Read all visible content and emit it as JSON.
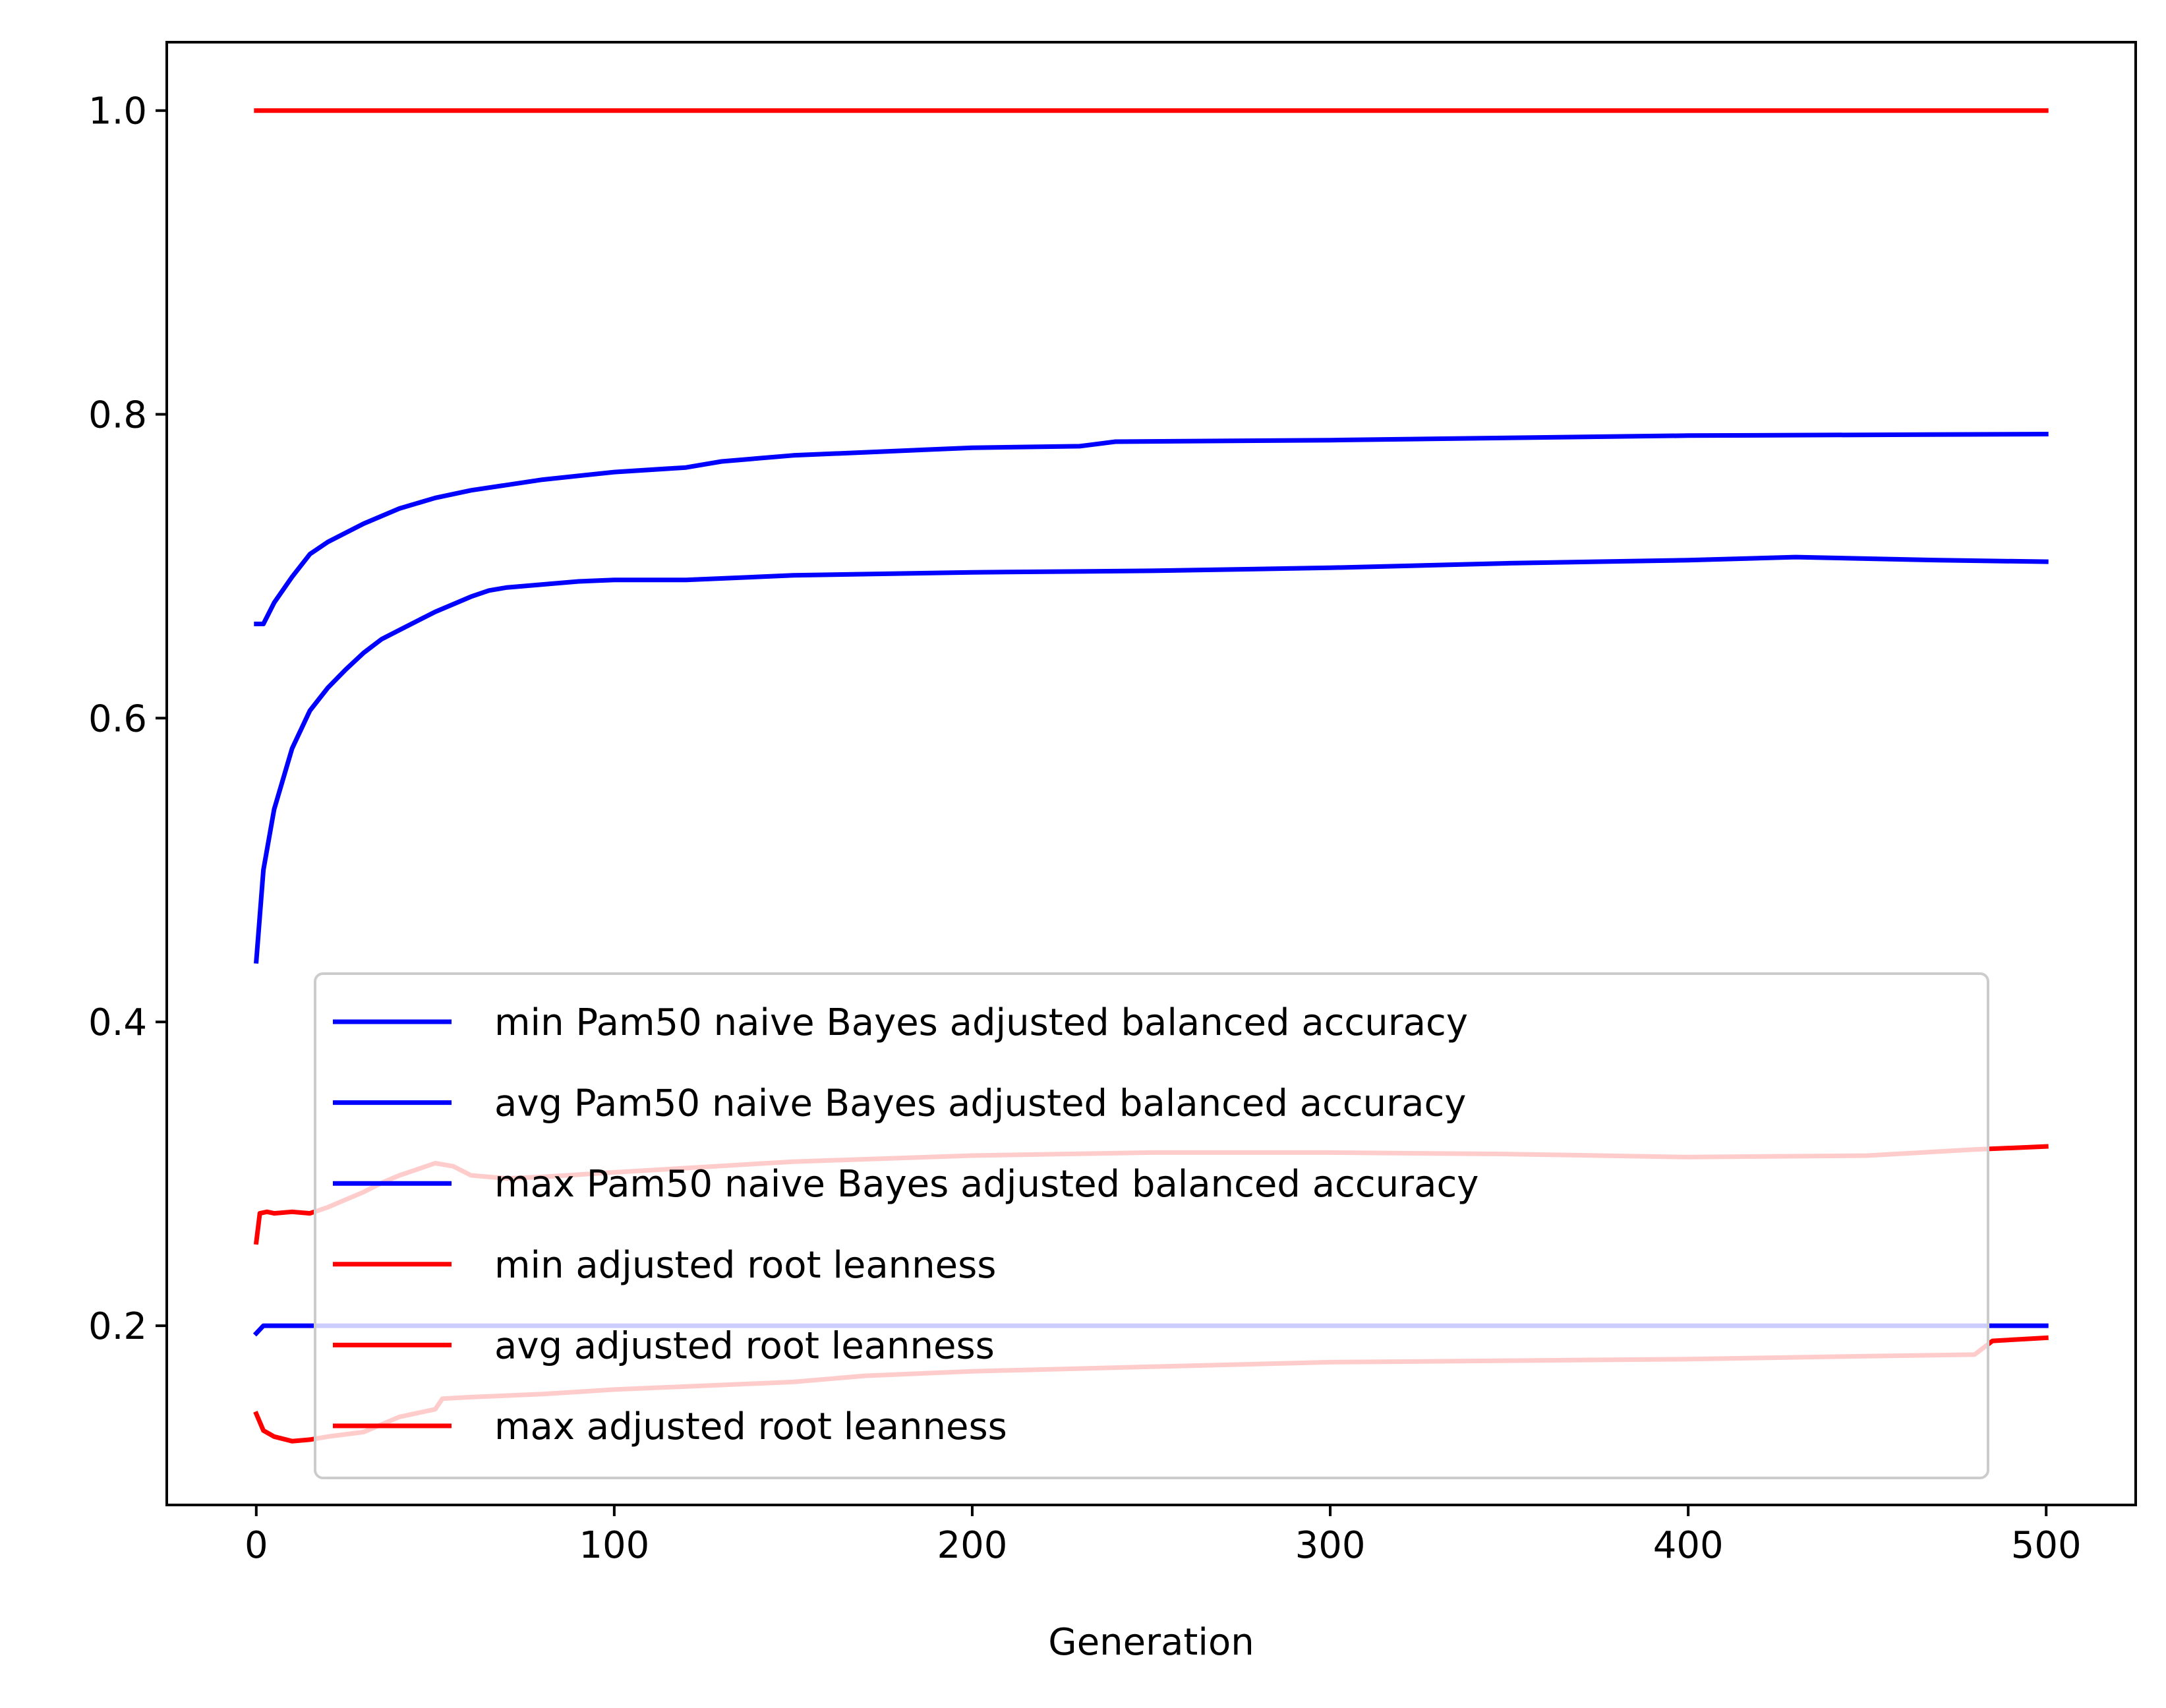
{
  "chart_data": {
    "type": "line",
    "title": "",
    "xlabel": "Generation",
    "ylabel": "",
    "xlim": [
      -25,
      525
    ],
    "ylim": [
      0.082,
      1.045
    ],
    "x_ticks": [
      0,
      100,
      200,
      300,
      400,
      500
    ],
    "x_tick_labels": [
      "0",
      "100",
      "200",
      "300",
      "400",
      "500"
    ],
    "y_ticks": [
      0.2,
      0.4,
      0.6,
      0.8,
      1.0
    ],
    "y_tick_labels": [
      "0.2",
      "0.4",
      "0.6",
      "0.8",
      "1.0"
    ],
    "grid": false,
    "legend_position": "lower-center",
    "series": [
      {
        "name": "min Pam50 naive Bayes adjusted balanced accuracy",
        "color": "#0000ff",
        "x": [
          0,
          2,
          5,
          500
        ],
        "y": [
          0.195,
          0.2,
          0.2,
          0.2
        ]
      },
      {
        "name": "avg Pam50 naive Bayes adjusted balanced accuracy",
        "color": "#0000ff",
        "x": [
          0,
          2,
          5,
          10,
          15,
          20,
          25,
          30,
          35,
          40,
          45,
          50,
          55,
          60,
          65,
          70,
          80,
          90,
          100,
          120,
          150,
          200,
          250,
          300,
          350,
          400,
          430,
          470,
          500
        ],
        "y": [
          0.44,
          0.5,
          0.54,
          0.58,
          0.605,
          0.62,
          0.632,
          0.643,
          0.652,
          0.658,
          0.664,
          0.67,
          0.675,
          0.68,
          0.684,
          0.686,
          0.688,
          0.69,
          0.691,
          0.691,
          0.694,
          0.696,
          0.697,
          0.699,
          0.702,
          0.704,
          0.706,
          0.704,
          0.703
        ]
      },
      {
        "name": "max Pam50 naive Bayes adjusted balanced accuracy",
        "color": "#0000ff",
        "x": [
          0,
          2,
          5,
          10,
          15,
          20,
          25,
          30,
          40,
          50,
          60,
          80,
          100,
          120,
          130,
          150,
          200,
          230,
          240,
          300,
          400,
          500
        ],
        "y": [
          0.662,
          0.662,
          0.676,
          0.693,
          0.708,
          0.716,
          0.722,
          0.728,
          0.738,
          0.745,
          0.75,
          0.757,
          0.762,
          0.765,
          0.769,
          0.773,
          0.778,
          0.779,
          0.782,
          0.783,
          0.786,
          0.787
        ]
      },
      {
        "name": "min adjusted root leanness",
        "color": "#ff0000",
        "x": [
          0,
          2,
          5,
          10,
          15,
          20,
          30,
          40,
          50,
          52,
          60,
          80,
          100,
          150,
          170,
          200,
          250,
          300,
          350,
          400,
          450,
          480,
          485,
          500
        ],
        "y": [
          0.142,
          0.131,
          0.127,
          0.124,
          0.125,
          0.127,
          0.13,
          0.14,
          0.145,
          0.152,
          0.153,
          0.155,
          0.158,
          0.163,
          0.167,
          0.17,
          0.173,
          0.176,
          0.177,
          0.178,
          0.18,
          0.181,
          0.19,
          0.192
        ]
      },
      {
        "name": "avg adjusted root leanness",
        "color": "#ff0000",
        "x": [
          0,
          1,
          3,
          5,
          10,
          15,
          20,
          25,
          30,
          35,
          40,
          45,
          50,
          55,
          60,
          70,
          80,
          100,
          150,
          200,
          250,
          300,
          350,
          400,
          450,
          480,
          500
        ],
        "y": [
          0.255,
          0.274,
          0.275,
          0.274,
          0.275,
          0.274,
          0.278,
          0.283,
          0.288,
          0.294,
          0.299,
          0.303,
          0.307,
          0.305,
          0.299,
          0.297,
          0.298,
          0.301,
          0.308,
          0.312,
          0.314,
          0.314,
          0.313,
          0.311,
          0.312,
          0.316,
          0.318
        ]
      },
      {
        "name": "max adjusted root leanness",
        "color": "#ff0000",
        "x": [
          0,
          500
        ],
        "y": [
          1.0,
          1.0
        ]
      }
    ]
  }
}
